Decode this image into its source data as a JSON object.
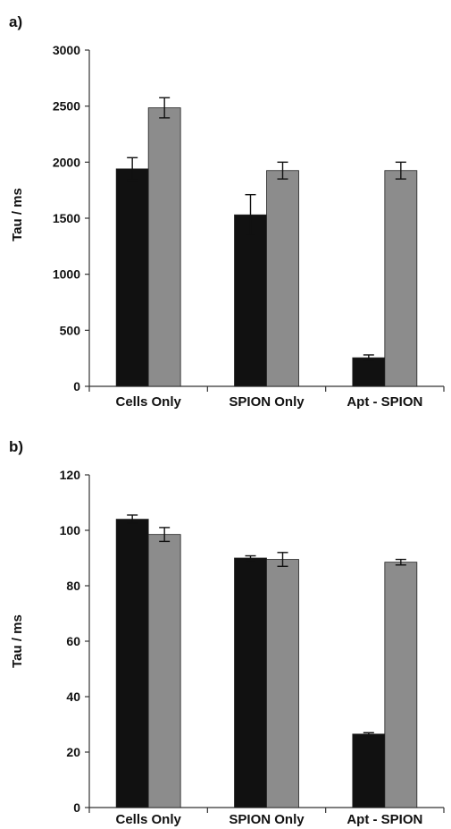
{
  "chart_data": [
    {
      "type": "bar",
      "panel_label": "a)",
      "categories": [
        "Cells Only",
        "SPION Only",
        "Apt - SPION"
      ],
      "ylabel": "Tau / ms",
      "ylim": [
        0,
        3000
      ],
      "yticks": [
        0,
        500,
        1000,
        1500,
        2000,
        2500,
        3000
      ],
      "grid": false,
      "series": [
        {
          "color": "#111111",
          "values": [
            1940,
            1530,
            255
          ],
          "errors": [
            100,
            180,
            25
          ]
        },
        {
          "color": "#8c8c8c",
          "values": [
            2485,
            1925,
            1925
          ],
          "errors": [
            90,
            75,
            75
          ]
        }
      ]
    },
    {
      "type": "bar",
      "panel_label": "b)",
      "categories": [
        "Cells Only",
        "SPION Only",
        "Apt - SPION"
      ],
      "ylabel": "Tau / ms",
      "ylim": [
        0,
        120
      ],
      "yticks": [
        0,
        20,
        40,
        60,
        80,
        100,
        120
      ],
      "grid": false,
      "series": [
        {
          "color": "#111111",
          "values": [
            104,
            90,
            26.5
          ],
          "errors": [
            1.5,
            0.8,
            0.5
          ]
        },
        {
          "color": "#8c8c8c",
          "values": [
            98.5,
            89.5,
            88.5
          ],
          "errors": [
            2.5,
            2.5,
            1
          ]
        }
      ]
    }
  ]
}
